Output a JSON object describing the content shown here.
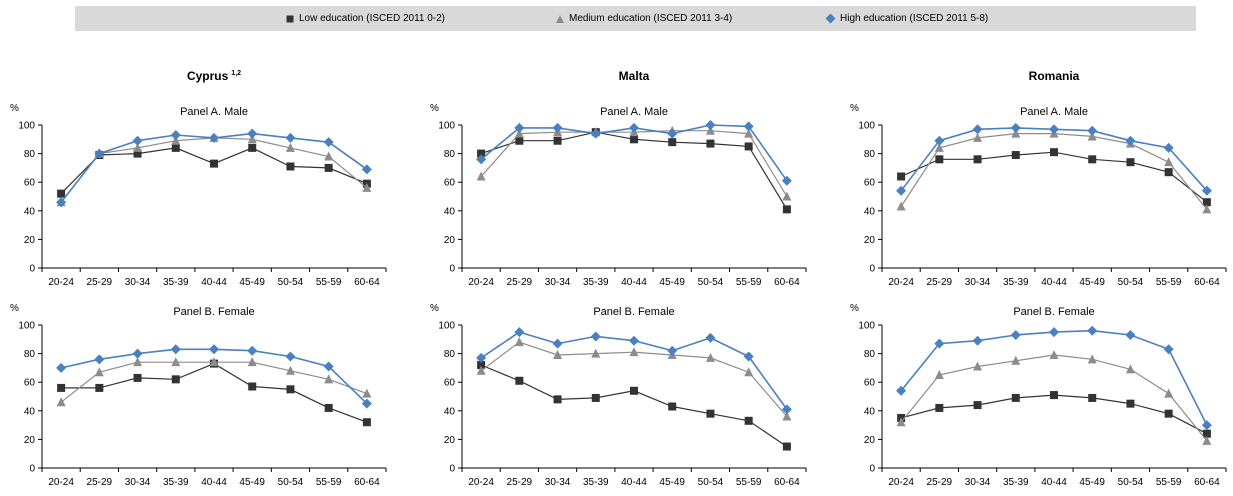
{
  "legend": [
    {
      "name": "Low education (ISCED 2011 0-2)",
      "color": "#333333",
      "marker": "square"
    },
    {
      "name": "Medium education (ISCED 2011 3-4)",
      "color": "#8c8c8c",
      "marker": "triangle"
    },
    {
      "name": "High education (ISCED 2011 5-8)",
      "color": "#4a7fc1",
      "marker": "diamond"
    }
  ],
  "chart_data": [
    {
      "type": "line",
      "country": "Cyprus",
      "country_sup": "1,2",
      "title": "Panel A. Male",
      "ylabel": "%",
      "ylim": [
        0,
        100
      ],
      "yticks": [
        "0",
        "20",
        "40",
        "60",
        "80",
        "100"
      ],
      "categories": [
        "20-24",
        "25-29",
        "30-34",
        "35-39",
        "40-44",
        "45-49",
        "50-54",
        "55-59",
        "60-64"
      ],
      "series": [
        {
          "name": "Low education (ISCED 2011 0-2)",
          "values": [
            52,
            79,
            80,
            84,
            73,
            84,
            71,
            70,
            59
          ]
        },
        {
          "name": "Medium education (ISCED 2011 3-4)",
          "values": [
            46,
            80,
            84,
            89,
            91,
            90,
            84,
            78,
            56
          ]
        },
        {
          "name": "High education (ISCED 2011 5-8)",
          "values": [
            46,
            80,
            89,
            93,
            91,
            94,
            91,
            88,
            69
          ]
        }
      ]
    },
    {
      "type": "line",
      "country": "Malta",
      "title": "Panel A. Male",
      "ylabel": "%",
      "ylim": [
        0,
        100
      ],
      "yticks": [
        "0",
        "20",
        "40",
        "60",
        "80",
        "100"
      ],
      "categories": [
        "20-24",
        "25-29",
        "30-34",
        "35-39",
        "40-44",
        "45-49",
        "50-54",
        "55-59",
        "60-64"
      ],
      "series": [
        {
          "name": "Low education (ISCED 2011 0-2)",
          "values": [
            80,
            89,
            89,
            95,
            90,
            88,
            87,
            85,
            41
          ]
        },
        {
          "name": "Medium education (ISCED 2011 3-4)",
          "values": [
            64,
            94,
            95,
            95,
            95,
            96,
            96,
            94,
            50
          ]
        },
        {
          "name": "High education (ISCED 2011 5-8)",
          "values": [
            76,
            98,
            98,
            94,
            98,
            94,
            100,
            99,
            61
          ]
        }
      ]
    },
    {
      "type": "line",
      "country": "Romania",
      "title": "Panel A. Male",
      "ylabel": "%",
      "ylim": [
        0,
        100
      ],
      "yticks": [
        "0",
        "20",
        "40",
        "60",
        "80",
        "100"
      ],
      "categories": [
        "20-24",
        "25-29",
        "30-34",
        "35-39",
        "40-44",
        "45-49",
        "50-54",
        "55-59",
        "60-64"
      ],
      "series": [
        {
          "name": "Low education (ISCED 2011 0-2)",
          "values": [
            64,
            76,
            76,
            79,
            81,
            76,
            74,
            67,
            46
          ]
        },
        {
          "name": "Medium education (ISCED 2011 3-4)",
          "values": [
            43,
            84,
            91,
            94,
            94,
            92,
            87,
            74,
            41
          ]
        },
        {
          "name": "High education (ISCED 2011 5-8)",
          "values": [
            54,
            89,
            97,
            98,
            97,
            96,
            89,
            84,
            54
          ]
        }
      ]
    },
    {
      "type": "line",
      "title": "Panel B. Female",
      "ylabel": "%",
      "ylim": [
        0,
        100
      ],
      "yticks": [
        "0",
        "20",
        "40",
        "60",
        "80",
        "100"
      ],
      "categories": [
        "20-24",
        "25-29",
        "30-34",
        "35-39",
        "40-44",
        "45-49",
        "50-54",
        "55-59",
        "60-64"
      ],
      "series": [
        {
          "name": "Low education (ISCED 2011 0-2)",
          "values": [
            56,
            56,
            63,
            62,
            73,
            57,
            55,
            42,
            32
          ]
        },
        {
          "name": "Medium education (ISCED 2011 3-4)",
          "values": [
            46,
            67,
            74,
            74,
            74,
            74,
            68,
            62,
            52
          ]
        },
        {
          "name": "High education (ISCED 2011 5-8)",
          "values": [
            70,
            76,
            80,
            83,
            83,
            82,
            78,
            71,
            45
          ]
        }
      ]
    },
    {
      "type": "line",
      "title": "Panel B. Female",
      "ylabel": "%",
      "ylim": [
        0,
        100
      ],
      "yticks": [
        "0",
        "20",
        "40",
        "60",
        "80",
        "100"
      ],
      "categories": [
        "20-24",
        "25-29",
        "30-34",
        "35-39",
        "40-44",
        "45-49",
        "50-54",
        "55-59",
        "60-64"
      ],
      "series": [
        {
          "name": "Low education (ISCED 2011 0-2)",
          "values": [
            72,
            61,
            48,
            49,
            54,
            43,
            38,
            33,
            15
          ]
        },
        {
          "name": "Medium education (ISCED 2011 3-4)",
          "values": [
            68,
            88,
            79,
            80,
            81,
            79,
            77,
            67,
            36
          ]
        },
        {
          "name": "High education (ISCED 2011 5-8)",
          "values": [
            77,
            95,
            87,
            92,
            89,
            82,
            91,
            78,
            41
          ]
        }
      ]
    },
    {
      "type": "line",
      "title": "Panel B. Female",
      "ylabel": "%",
      "ylim": [
        0,
        100
      ],
      "yticks": [
        "0",
        "20",
        "40",
        "60",
        "80",
        "100"
      ],
      "categories": [
        "20-24",
        "25-29",
        "30-34",
        "35-39",
        "40-44",
        "45-49",
        "50-54",
        "55-59",
        "60-64"
      ],
      "series": [
        {
          "name": "Low education (ISCED 2011 0-2)",
          "values": [
            35,
            42,
            44,
            49,
            51,
            49,
            45,
            38,
            24
          ]
        },
        {
          "name": "Medium education (ISCED 2011 3-4)",
          "values": [
            32,
            65,
            71,
            75,
            79,
            76,
            69,
            52,
            19
          ]
        },
        {
          "name": "High education (ISCED 2011 5-8)",
          "values": [
            54,
            87,
            89,
            93,
            95,
            96,
            93,
            83,
            30
          ]
        }
      ]
    }
  ]
}
